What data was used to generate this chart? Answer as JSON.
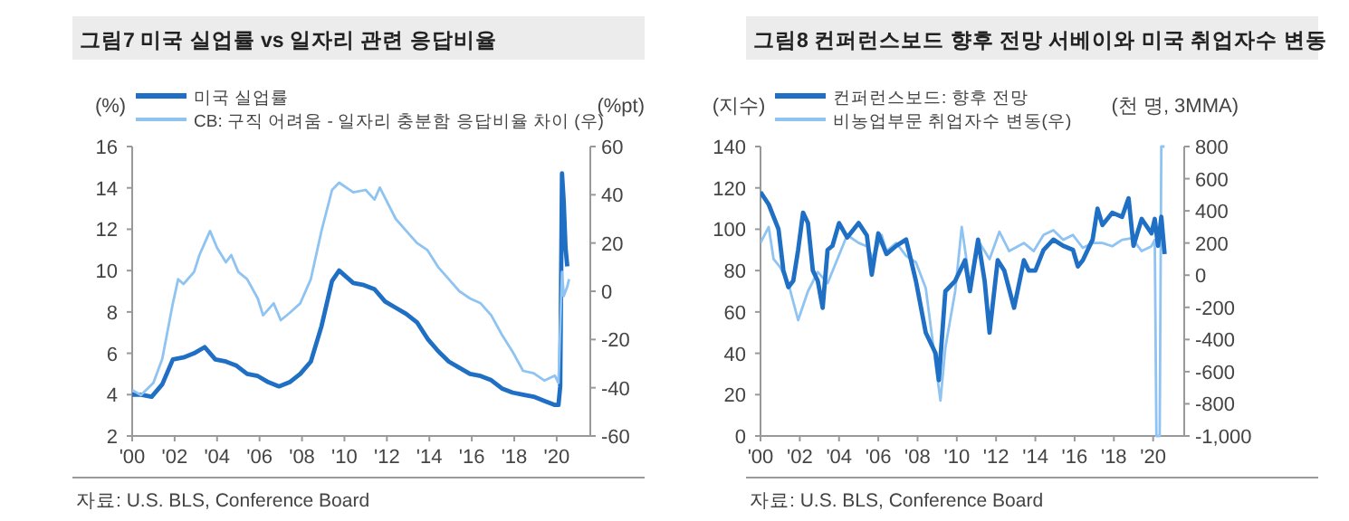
{
  "chart_data": [
    {
      "type": "line",
      "title": "그림7 미국 실업률 vs 일자리 관련 응답비율",
      "ylabel": "(%)",
      "y2label": "(%pt)",
      "legend": "top",
      "xlim": [
        "2000-01",
        "2021-08"
      ],
      "xticks": [
        {
          "value": "2000-01",
          "label": "'00"
        },
        {
          "value": "2002-01",
          "label": "'02"
        },
        {
          "value": "2004-01",
          "label": "'04"
        },
        {
          "value": "2006-01",
          "label": "'06"
        },
        {
          "value": "2008-01",
          "label": "'08"
        },
        {
          "value": "2010-01",
          "label": "'10"
        },
        {
          "value": "2012-01",
          "label": "'12"
        },
        {
          "value": "2014-01",
          "label": "'14"
        },
        {
          "value": "2016-01",
          "label": "'16"
        },
        {
          "value": "2018-01",
          "label": "'18"
        },
        {
          "value": "2020-01",
          "label": "'20"
        }
      ],
      "ylim": [
        2,
        16
      ],
      "yticks": [
        2,
        4,
        6,
        8,
        10,
        12,
        14,
        16
      ],
      "y2lim": [
        -60,
        60
      ],
      "y2ticks": [
        -60,
        -40,
        -20,
        0,
        20,
        40,
        60
      ],
      "series": [
        {
          "name": "미국 실업률",
          "color": "#1f6fc5",
          "x": [
            "2000-01",
            "2000-06",
            "2000-12",
            "2001-06",
            "2001-12",
            "2002-06",
            "2002-12",
            "2003-06",
            "2003-12",
            "2004-06",
            "2004-12",
            "2005-06",
            "2005-12",
            "2006-06",
            "2006-12",
            "2007-06",
            "2007-12",
            "2008-06",
            "2008-12",
            "2009-06",
            "2009-10",
            "2010-06",
            "2010-12",
            "2011-06",
            "2011-12",
            "2012-06",
            "2012-12",
            "2013-06",
            "2013-12",
            "2014-06",
            "2014-12",
            "2015-06",
            "2015-12",
            "2016-06",
            "2016-12",
            "2017-06",
            "2017-12",
            "2018-06",
            "2018-12",
            "2019-06",
            "2019-12",
            "2020-02",
            "2020-03",
            "2020-04",
            "2020-05",
            "2020-06",
            "2020-07"
          ],
          "values": [
            4.0,
            4.0,
            3.9,
            4.5,
            5.7,
            5.8,
            6.0,
            6.3,
            5.7,
            5.6,
            5.4,
            5.0,
            4.9,
            4.6,
            4.4,
            4.6,
            5.0,
            5.6,
            7.3,
            9.5,
            10.0,
            9.4,
            9.3,
            9.1,
            8.5,
            8.2,
            7.9,
            7.5,
            6.7,
            6.1,
            5.6,
            5.3,
            5.0,
            4.9,
            4.7,
            4.3,
            4.1,
            4.0,
            3.9,
            3.7,
            3.5,
            3.5,
            4.4,
            14.7,
            13.3,
            11.1,
            10.2
          ]
        },
        {
          "name": "CB: 구직 어려움 - 일자리 충분함 응답비율 차이 (우)",
          "color": "#8ec3f2",
          "axis": "y2",
          "x": [
            "2000-01",
            "2000-06",
            "2001-01",
            "2001-06",
            "2001-12",
            "2002-03",
            "2002-06",
            "2002-12",
            "2003-03",
            "2003-06",
            "2003-09",
            "2004-01",
            "2004-06",
            "2004-09",
            "2005-01",
            "2005-06",
            "2005-12",
            "2006-03",
            "2006-09",
            "2007-01",
            "2007-06",
            "2007-12",
            "2008-06",
            "2008-12",
            "2009-06",
            "2009-10",
            "2010-06",
            "2011-01",
            "2011-06",
            "2011-09",
            "2012-06",
            "2012-12",
            "2013-06",
            "2013-12",
            "2014-06",
            "2014-12",
            "2015-06",
            "2015-12",
            "2016-06",
            "2016-12",
            "2017-06",
            "2017-12",
            "2018-06",
            "2018-12",
            "2019-06",
            "2019-12",
            "2020-02",
            "2020-04",
            "2020-05",
            "2020-07",
            "2020-08"
          ],
          "values": [
            -41,
            -43,
            -38,
            -28,
            -5,
            5,
            3,
            8,
            15,
            20,
            25,
            18,
            12,
            15,
            8,
            5,
            -3,
            -10,
            -5,
            -12,
            -9,
            -5,
            5,
            25,
            42,
            45,
            41,
            42,
            38,
            43,
            30,
            25,
            20,
            17,
            10,
            5,
            0,
            -3,
            -5,
            -10,
            -18,
            -25,
            -33,
            -34,
            -37,
            -35,
            -38,
            8,
            -2,
            2,
            5
          ]
        }
      ],
      "annotations": [
        "자료: U.S. BLS, Conference Board"
      ]
    },
    {
      "type": "line",
      "title": "그림8 컨퍼런스보드 향후 전망 서베이와 미국 취업자수 변동",
      "ylabel": "(지수)",
      "y2label": "(천 명, 3MMA)",
      "legend": "top left",
      "xlim": [
        "2000-01",
        "2021-08"
      ],
      "xticks": [
        {
          "value": "2000-01",
          "label": "'00"
        },
        {
          "value": "2002-01",
          "label": "'02"
        },
        {
          "value": "2004-01",
          "label": "'04"
        },
        {
          "value": "2006-01",
          "label": "'06"
        },
        {
          "value": "2008-01",
          "label": "'08"
        },
        {
          "value": "2010-01",
          "label": "'10"
        },
        {
          "value": "2012-01",
          "label": "'12"
        },
        {
          "value": "2014-01",
          "label": "'14"
        },
        {
          "value": "2016-01",
          "label": "'16"
        },
        {
          "value": "2018-01",
          "label": "'18"
        },
        {
          "value": "2020-01",
          "label": "'20"
        }
      ],
      "ylim": [
        0,
        140
      ],
      "yticks": [
        0,
        20,
        40,
        60,
        80,
        100,
        120,
        140
      ],
      "y2lim": [
        -1000,
        800
      ],
      "y2ticks": [
        {
          "value": -1000,
          "label": "-1,000"
        },
        -800,
        -600,
        -400,
        -200,
        0,
        200,
        400,
        600,
        800
      ],
      "series": [
        {
          "name": "비농업부문 취업자수 변동(우)",
          "color": "#8ec3f2",
          "axis": "y2",
          "x": [
            "2000-01",
            "2000-06",
            "2000-09",
            "2001-01",
            "2001-06",
            "2001-12",
            "2002-06",
            "2002-12",
            "2003-06",
            "2003-12",
            "2004-06",
            "2005-01",
            "2005-06",
            "2005-10",
            "2006-03",
            "2006-06",
            "2006-12",
            "2007-06",
            "2007-12",
            "2008-06",
            "2008-12",
            "2009-03",
            "2009-06",
            "2009-12",
            "2010-04",
            "2010-09",
            "2011-03",
            "2011-09",
            "2012-03",
            "2012-09",
            "2013-06",
            "2013-12",
            "2014-06",
            "2014-12",
            "2015-06",
            "2015-12",
            "2016-06",
            "2016-12",
            "2017-06",
            "2017-12",
            "2018-06",
            "2018-12",
            "2019-06",
            "2019-12",
            "2020-02",
            "2020-03",
            "2020-05",
            "2020-06",
            "2020-08"
          ],
          "values": [
            200,
            300,
            100,
            50,
            -50,
            -280,
            -100,
            20,
            -50,
            100,
            250,
            200,
            180,
            100,
            250,
            150,
            200,
            120,
            80,
            -80,
            -550,
            -780,
            -450,
            -100,
            300,
            -50,
            200,
            100,
            270,
            150,
            200,
            150,
            250,
            280,
            220,
            250,
            170,
            200,
            200,
            180,
            220,
            230,
            150,
            180,
            220,
            -1000,
            -1000,
            800,
            800
          ]
        },
        {
          "name": "컨퍼런스보드: 향후 전망",
          "color": "#1f6fc5",
          "x": [
            "2000-01",
            "2000-06",
            "2000-12",
            "2001-03",
            "2001-06",
            "2001-09",
            "2001-12",
            "2002-03",
            "2002-06",
            "2002-09",
            "2002-12",
            "2003-03",
            "2003-06",
            "2003-09",
            "2004-01",
            "2004-06",
            "2005-01",
            "2005-06",
            "2005-09",
            "2006-01",
            "2006-06",
            "2006-12",
            "2007-06",
            "2007-12",
            "2008-06",
            "2008-12",
            "2009-02",
            "2009-06",
            "2009-12",
            "2010-06",
            "2010-09",
            "2011-02",
            "2011-06",
            "2011-09",
            "2012-02",
            "2012-06",
            "2012-12",
            "2013-06",
            "2013-09",
            "2014-01",
            "2014-06",
            "2014-12",
            "2015-06",
            "2015-12",
            "2016-03",
            "2016-06",
            "2016-12",
            "2017-03",
            "2017-06",
            "2017-12",
            "2018-06",
            "2018-10",
            "2019-01",
            "2019-06",
            "2019-12",
            "2020-02",
            "2020-04",
            "2020-06",
            "2020-08"
          ],
          "values": [
            118,
            112,
            100,
            80,
            72,
            75,
            90,
            108,
            103,
            80,
            75,
            62,
            90,
            92,
            103,
            96,
            103,
            97,
            78,
            98,
            88,
            92,
            95,
            75,
            50,
            40,
            27,
            70,
            75,
            85,
            70,
            95,
            75,
            50,
            85,
            80,
            62,
            85,
            80,
            80,
            90,
            95,
            92,
            90,
            82,
            85,
            95,
            110,
            102,
            108,
            106,
            115,
            92,
            105,
            98,
            105,
            92,
            106,
            88
          ]
        }
      ],
      "annotations": [
        "자료: U.S. BLS, Conference Board"
      ]
    }
  ]
}
